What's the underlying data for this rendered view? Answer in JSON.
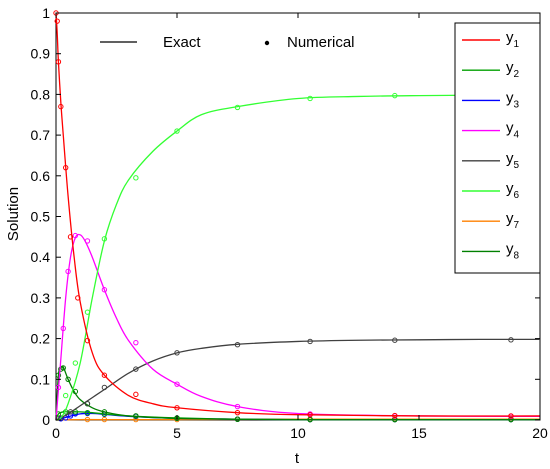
{
  "chart_data": {
    "type": "line",
    "title": "",
    "xlabel": "t",
    "ylabel": "Solution",
    "xlim": [
      0,
      20
    ],
    "ylim": [
      0,
      1
    ],
    "xticks": [
      0,
      5,
      10,
      15,
      20
    ],
    "yticks": [
      0,
      0.1,
      0.2,
      0.3,
      0.4,
      0.5,
      0.6,
      0.7,
      0.8,
      0.9,
      1
    ],
    "grid": false,
    "style_legend": {
      "placement": "top-left",
      "exact_label": "Exact",
      "numerical_label": "Numerical",
      "exact_color": "#000000",
      "numerical_color": "#000000"
    },
    "series_legend": {
      "placement": "top-right"
    },
    "series": [
      {
        "name": "y",
        "subscript": "1",
        "color": "#ff0000",
        "x": [
          0,
          0.05,
          0.1,
          0.2,
          0.3,
          0.5,
          0.75,
          1,
          1.5,
          2,
          3,
          4,
          5,
          7.5,
          10,
          15,
          20
        ],
        "values": [
          1.0,
          0.95,
          0.88,
          0.78,
          0.7,
          0.55,
          0.4,
          0.29,
          0.165,
          0.11,
          0.06,
          0.04,
          0.03,
          0.018,
          0.013,
          0.01,
          0.01
        ],
        "marker_x": [
          0,
          0.05,
          0.1,
          0.2,
          0.4,
          0.6,
          0.9,
          1.3,
          2,
          3.3,
          5,
          7.5,
          10.5,
          14,
          18.8
        ],
        "marker_y": [
          1.0,
          0.98,
          0.88,
          0.77,
          0.62,
          0.45,
          0.3,
          0.195,
          0.11,
          0.063,
          0.03,
          0.018,
          0.013,
          0.011,
          0.01
        ]
      },
      {
        "name": "y",
        "subscript": "2",
        "color": "#00a000",
        "x": [
          0,
          0.1,
          0.3,
          0.5,
          1,
          1.5,
          2,
          3,
          5,
          7.5,
          10,
          15,
          20
        ],
        "values": [
          0,
          0.015,
          0.02,
          0.02,
          0.02,
          0.018,
          0.015,
          0.01,
          0.005,
          0.002,
          0.001,
          0.001,
          0.001
        ],
        "marker_x": [
          0.1,
          0.4,
          0.8,
          1.3,
          2,
          3.3,
          5,
          7.5,
          10.5,
          14,
          18.8
        ],
        "marker_y": [
          0.015,
          0.02,
          0.02,
          0.018,
          0.015,
          0.01,
          0.005,
          0.002,
          0.001,
          0.001,
          0.001
        ]
      },
      {
        "name": "y",
        "subscript": "3",
        "color": "#0000ff",
        "x": [
          0,
          0.2,
          0.5,
          1,
          1.5,
          2,
          3,
          5,
          7.5,
          10,
          15,
          20
        ],
        "values": [
          0,
          0.003,
          0.008,
          0.015,
          0.016,
          0.014,
          0.009,
          0.004,
          0.002,
          0.001,
          0.001,
          0.001
        ],
        "marker_x": [
          0.2,
          0.4,
          0.6,
          0.8,
          1.3,
          2,
          3.3,
          5,
          7.5,
          10.5,
          14,
          18.8
        ],
        "marker_y": [
          0.003,
          0.005,
          0.01,
          0.015,
          0.016,
          0.014,
          0.009,
          0.004,
          0.002,
          0.001,
          0.001,
          0.001
        ]
      },
      {
        "name": "y",
        "subscript": "4",
        "color": "#ff00ff",
        "x": [
          0,
          0.2,
          0.4,
          0.6,
          0.8,
          1,
          1.2,
          1.5,
          2,
          2.5,
          3,
          4,
          5,
          6,
          7.5,
          10,
          15,
          20
        ],
        "values": [
          0,
          0.15,
          0.3,
          0.4,
          0.448,
          0.455,
          0.44,
          0.4,
          0.32,
          0.25,
          0.195,
          0.125,
          0.088,
          0.058,
          0.033,
          0.016,
          0.01,
          0.009
        ],
        "marker_x": [
          0.1,
          0.3,
          0.5,
          0.8,
          1.3,
          2,
          3.3,
          5,
          7.5,
          10.5,
          14,
          18.8
        ],
        "marker_y": [
          0.08,
          0.225,
          0.365,
          0.453,
          0.44,
          0.32,
          0.19,
          0.088,
          0.033,
          0.015,
          0.01,
          0.009
        ]
      },
      {
        "name": "y",
        "subscript": "5",
        "color": "#404040",
        "x": [
          0,
          0.5,
          1,
          1.5,
          2,
          3,
          4,
          5,
          6,
          7.5,
          10,
          12.5,
          15,
          17.5,
          20
        ],
        "values": [
          0,
          0.015,
          0.035,
          0.055,
          0.075,
          0.115,
          0.145,
          0.165,
          0.176,
          0.186,
          0.193,
          0.196,
          0.197,
          0.198,
          0.198
        ],
        "marker_x": [
          0.2,
          0.6,
          1.3,
          2,
          3.3,
          5,
          7.5,
          10.5,
          14,
          18.8
        ],
        "marker_y": [
          0.005,
          0.02,
          0.04,
          0.08,
          0.125,
          0.165,
          0.185,
          0.193,
          0.196,
          0.197
        ]
      },
      {
        "name": "y",
        "subscript": "6",
        "color": "#33ff33",
        "x": [
          0,
          0.2,
          0.5,
          1,
          1.5,
          2,
          2.5,
          3,
          4,
          5,
          6,
          7.5,
          10,
          12.5,
          15,
          17.5,
          20
        ],
        "values": [
          0,
          0.005,
          0.04,
          0.14,
          0.3,
          0.44,
          0.53,
          0.59,
          0.66,
          0.71,
          0.75,
          0.77,
          0.79,
          0.795,
          0.797,
          0.798,
          0.799
        ],
        "marker_x": [
          0.4,
          0.8,
          1.3,
          2,
          3.3,
          5,
          7.5,
          10.5,
          14,
          18.8
        ],
        "marker_y": [
          0.06,
          0.14,
          0.265,
          0.445,
          0.595,
          0.71,
          0.768,
          0.79,
          0.797,
          0.799
        ]
      },
      {
        "name": "y",
        "subscript": "7",
        "color": "#ff8000",
        "x": [
          0,
          1,
          2,
          5,
          10,
          15,
          20
        ],
        "values": [
          0,
          0.001,
          0.001,
          0.001,
          0.002,
          0.002,
          0.002
        ],
        "marker_x": [
          1.3,
          2,
          3.3,
          5,
          7.5,
          10.5,
          14,
          18.8
        ],
        "marker_y": [
          0.001,
          0.001,
          0.001,
          0.001,
          0.002,
          0.002,
          0.002,
          0.002
        ]
      },
      {
        "name": "y",
        "subscript": "8",
        "color": "#008000",
        "x": [
          0,
          0.1,
          0.2,
          0.3,
          0.5,
          0.75,
          1,
          1.5,
          2,
          3,
          5,
          7.5,
          10,
          15,
          20
        ],
        "values": [
          0,
          0.11,
          0.128,
          0.13,
          0.1,
          0.07,
          0.05,
          0.03,
          0.02,
          0.01,
          0.004,
          0.002,
          0.001,
          0.001,
          0.001
        ],
        "marker_x": [
          0.1,
          0.2,
          0.3,
          0.5,
          0.8,
          1.3,
          2,
          3.3,
          5,
          7.5,
          10.5,
          14,
          18.8
        ],
        "marker_y": [
          0.11,
          0.125,
          0.128,
          0.1,
          0.07,
          0.04,
          0.02,
          0.01,
          0.004,
          0.002,
          0.001,
          0.001,
          0.001
        ]
      }
    ]
  }
}
